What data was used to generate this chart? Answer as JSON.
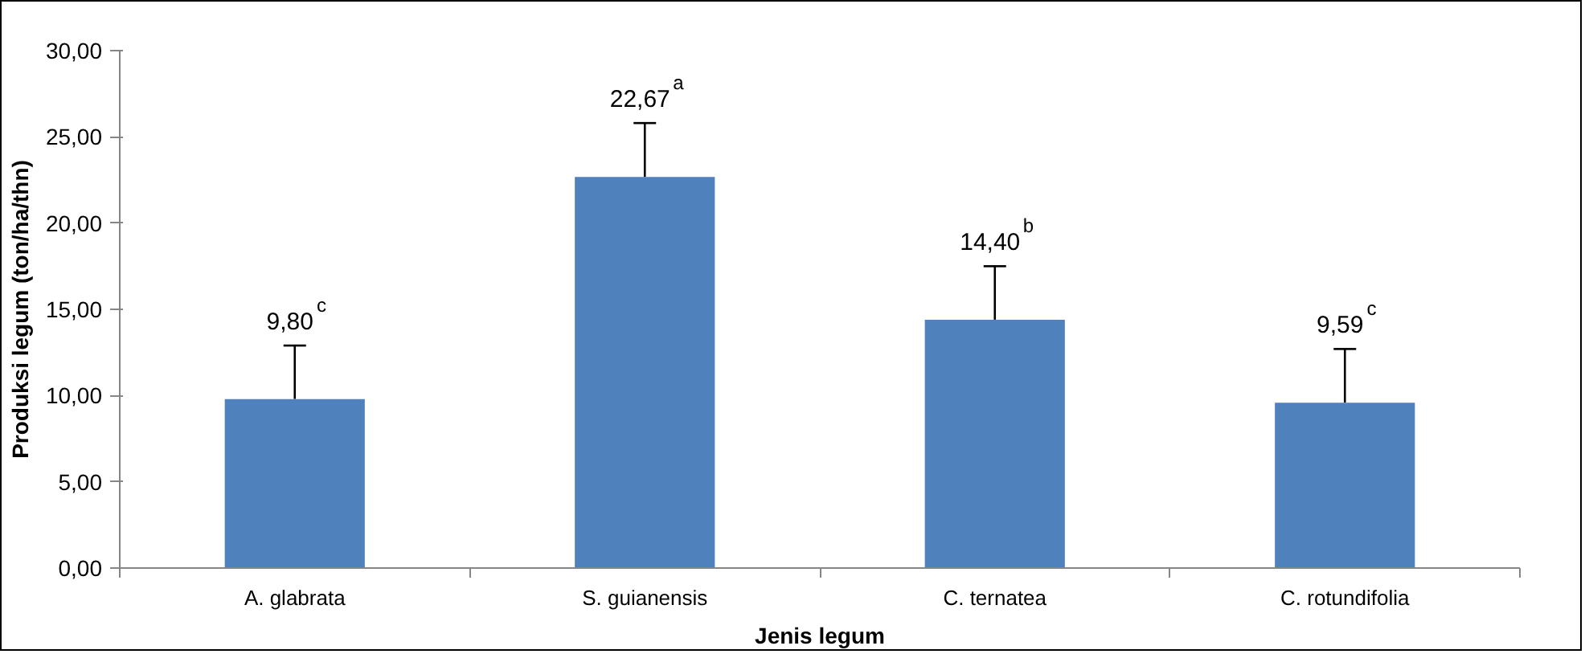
{
  "chart_data": {
    "type": "bar",
    "xlabel": "Jenis legum",
    "ylabel": "Produksi legum (ton/ha/thn)",
    "categories": [
      "A. glabrata",
      "S. guianensis",
      "C. ternatea",
      "C. rotundifolia"
    ],
    "values": [
      9.8,
      22.67,
      14.4,
      9.59
    ],
    "color": "#4f81bd",
    "errors": [
      [
        9.8,
        12.9
      ],
      [
        22.67,
        25.8
      ],
      [
        14.4,
        17.5
      ],
      [
        9.59,
        12.7
      ]
    ],
    "value_labels": [
      "9,80$^{c}$",
      "22,67$^{a}$",
      "14,40$^{b}$",
      "9,59$^{c}$"
    ],
    "ylim": [
      0,
      30
    ],
    "yticks": [
      {
        "value": 0,
        "label": "0,00"
      },
      {
        "value": 5,
        "label": "5,00"
      },
      {
        "value": 10,
        "label": "10,00"
      },
      {
        "value": 15,
        "label": "15,00"
      },
      {
        "value": 20,
        "label": "20,00"
      },
      {
        "value": 25,
        "label": "25,00"
      },
      {
        "value": 30,
        "label": "30,00"
      }
    ],
    "grid": false
  }
}
